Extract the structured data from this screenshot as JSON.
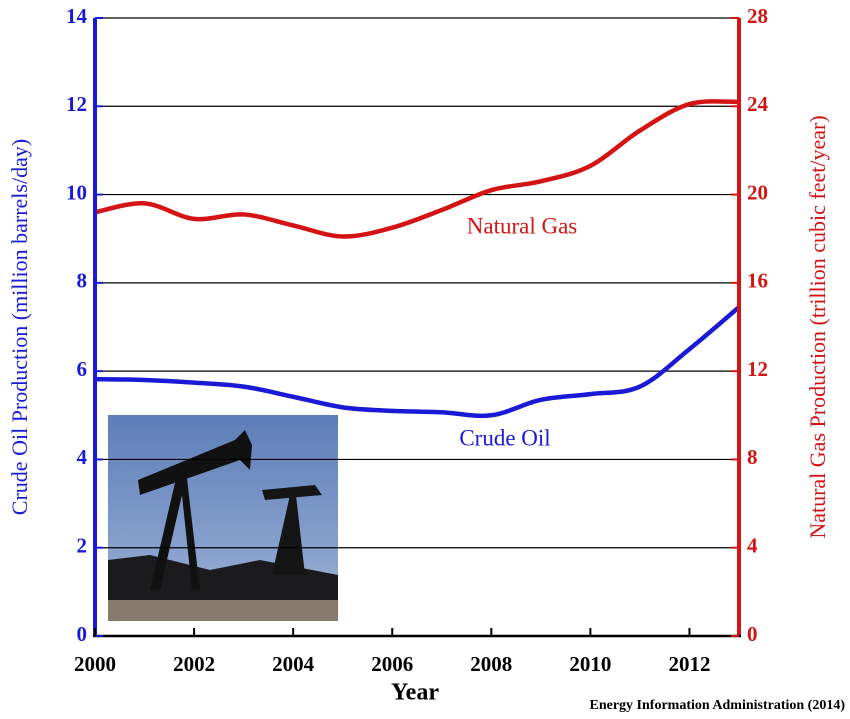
{
  "chart_data": {
    "type": "line",
    "x_label": "Year",
    "y_label": "Crude Oil Production (million barrels/day)",
    "y2_label": "Natural Gas Production (trillion cubic feet/year)",
    "x": [
      2000,
      2001,
      2002,
      2003,
      2004,
      2005,
      2006,
      2007,
      2008,
      2009,
      2010,
      2011,
      2012,
      2013
    ],
    "series": [
      {
        "name": "Crude Oil",
        "color": "#1a1ad6",
        "axis": "y",
        "values": [
          5.82,
          5.8,
          5.74,
          5.65,
          5.42,
          5.18,
          5.1,
          5.07,
          5.0,
          5.35,
          5.48,
          5.65,
          6.5,
          7.45
        ]
      },
      {
        "name": "Natural Gas",
        "color": "#d41414",
        "axis": "y2",
        "values": [
          19.2,
          19.6,
          18.9,
          19.1,
          18.6,
          18.1,
          18.5,
          19.3,
          20.2,
          20.6,
          21.3,
          22.9,
          24.1,
          24.2
        ]
      }
    ],
    "xlim": [
      2000,
      2013
    ],
    "xticks": [
      2000,
      2002,
      2004,
      2006,
      2008,
      2010,
      2012
    ],
    "ylim": [
      0,
      14
    ],
    "yticks": [
      0,
      2,
      4,
      6,
      8,
      10,
      12,
      14
    ],
    "y2lim": [
      0,
      28
    ],
    "y2ticks": [
      0,
      4,
      8,
      12,
      16,
      20,
      24,
      28
    ],
    "grid": true,
    "source": "Energy Information Administration (2014)"
  }
}
